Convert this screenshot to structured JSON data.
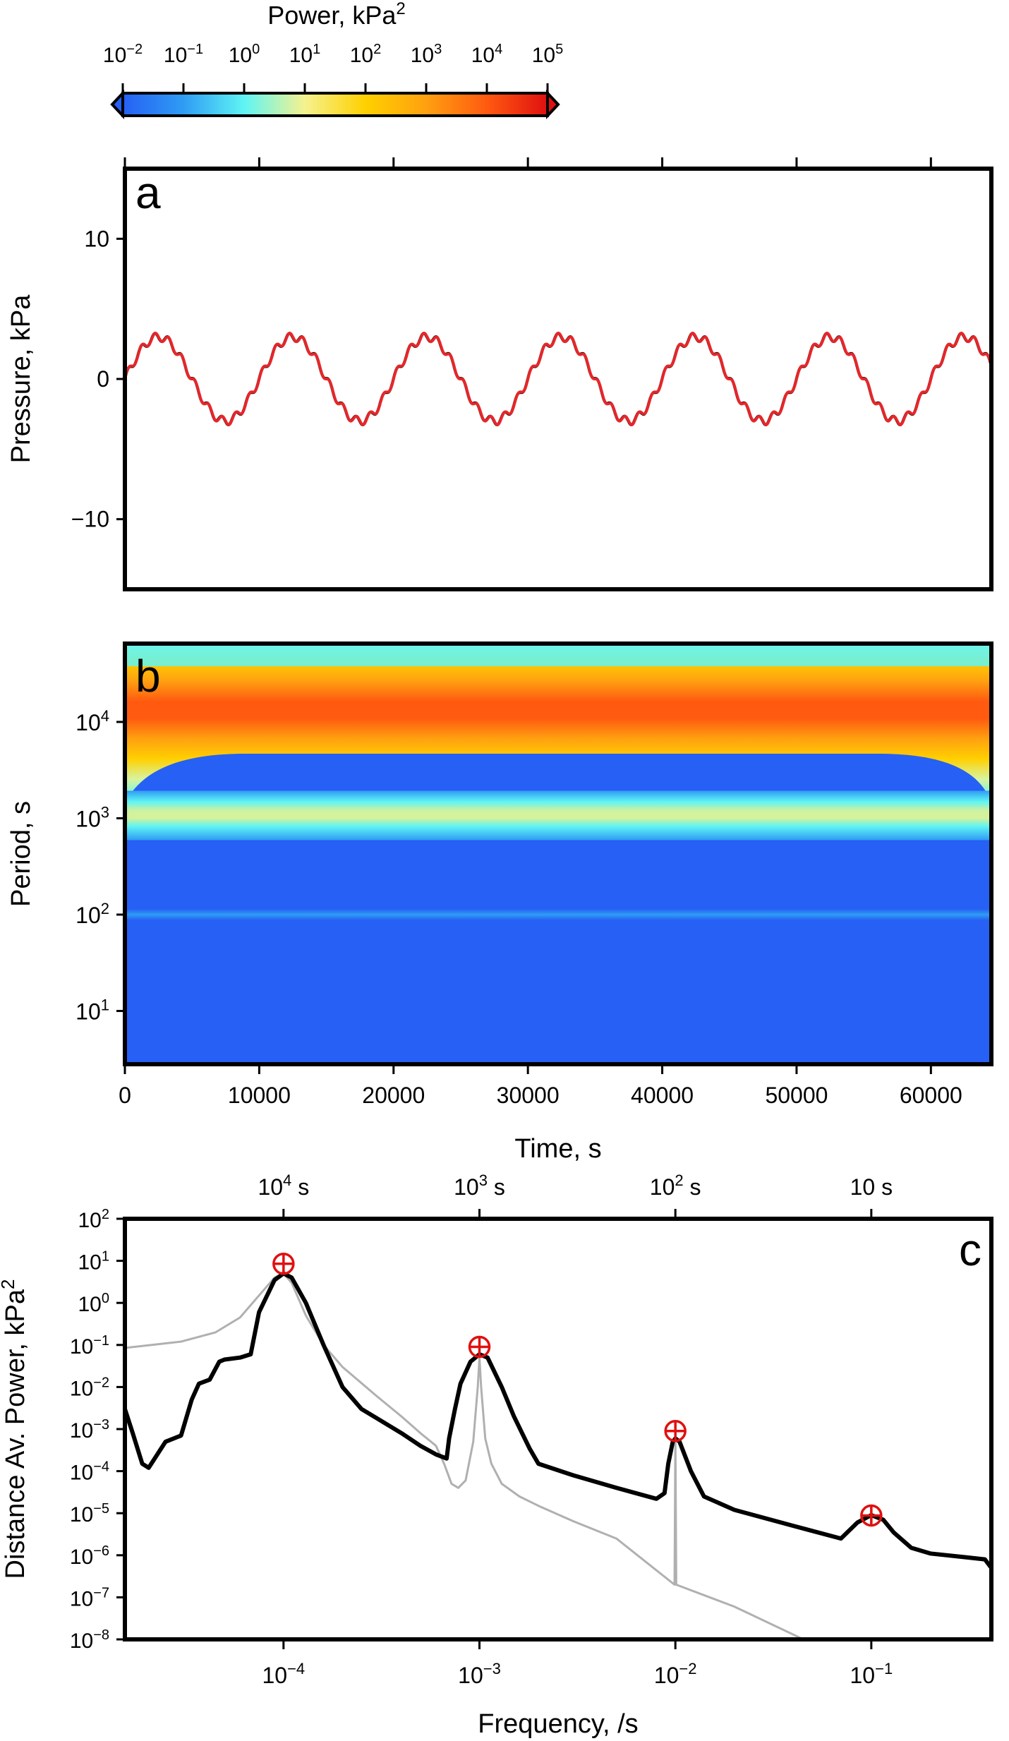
{
  "colorbar": {
    "title": "Power, kPa",
    "title_sup": "2",
    "ticks": [
      {
        "base": "10",
        "exp": "−2"
      },
      {
        "base": "10",
        "exp": "−1"
      },
      {
        "base": "10",
        "exp": "0"
      },
      {
        "base": "10",
        "exp": "1"
      },
      {
        "base": "10",
        "exp": "2"
      },
      {
        "base": "10",
        "exp": "3"
      },
      {
        "base": "10",
        "exp": "4"
      },
      {
        "base": "10",
        "exp": "5"
      }
    ],
    "log_range": [
      -2,
      5
    ],
    "colors": [
      "#2660f4",
      "#2f9cf4",
      "#5ff4f4",
      "#f6f28f",
      "#ffd000",
      "#ffa010",
      "#ff5a10",
      "#e01010"
    ]
  },
  "panels": {
    "a": {
      "label": "a"
    },
    "b": {
      "label": "b"
    },
    "c": {
      "label": "c"
    }
  },
  "chart_data": [
    {
      "type": "line",
      "panel": "a",
      "ylabel": "Pressure, kPa",
      "ylim": [
        -15,
        15
      ],
      "xlim": [
        0,
        64500
      ],
      "y_ticks": [
        -10,
        0,
        10
      ],
      "y_tick_labels": [
        "−10",
        "0",
        "10"
      ],
      "x_ticks": [
        0,
        10000,
        20000,
        30000,
        40000,
        50000,
        60000
      ],
      "signal": {
        "components": [
          {
            "amplitude_kpa": 3.0,
            "period_s": 10000
          },
          {
            "amplitude_kpa": 0.3,
            "period_s": 1000
          }
        ]
      },
      "series": [
        {
          "color": "#000000"
        },
        {
          "color": "#e8262a"
        }
      ]
    },
    {
      "type": "heatmap",
      "panel": "b",
      "xlabel": "Time, s",
      "ylabel": "Period, s",
      "xlim": [
        0,
        64500
      ],
      "ylim_period_s": [
        2.8,
        65000
      ],
      "log_y": true,
      "x_ticks": [
        0,
        10000,
        20000,
        30000,
        40000,
        50000,
        60000
      ],
      "x_tick_labels": [
        "0",
        "10000",
        "20000",
        "30000",
        "40000",
        "50000",
        "60000"
      ],
      "y_ticks": [
        {
          "base": "10",
          "exp": "1",
          "value": 10
        },
        {
          "base": "10",
          "exp": "2",
          "value": 100
        },
        {
          "base": "10",
          "exp": "3",
          "value": 1000
        },
        {
          "base": "10",
          "exp": "4",
          "value": 10000
        }
      ],
      "bands": [
        {
          "period_s": 10000,
          "max_log10_power": 4.5
        },
        {
          "period_s": 1000,
          "max_log10_power": 2.3
        },
        {
          "period_s": 100,
          "max_log10_power": -1.3
        }
      ]
    },
    {
      "type": "line",
      "panel": "c",
      "xlabel": "Frequency, /s",
      "ylabel": "Distance Av. Power, kPa",
      "ylabel_sup": "2",
      "log_x": true,
      "log_y": true,
      "xlim": [
        1.55e-05,
        0.41
      ],
      "ylim": [
        1e-08,
        100
      ],
      "x_ticks": [
        {
          "base": "10",
          "exp": "−4",
          "value": 0.0001
        },
        {
          "base": "10",
          "exp": "−3",
          "value": 0.001
        },
        {
          "base": "10",
          "exp": "−2",
          "value": 0.01
        },
        {
          "base": "10",
          "exp": "−1",
          "value": 0.1
        }
      ],
      "top_ticks": [
        {
          "base": "10",
          "exp": "4",
          "unit": " s",
          "value": 0.0001
        },
        {
          "base": "10",
          "exp": "3",
          "unit": " s",
          "value": 0.001
        },
        {
          "base": "10",
          "exp": "2",
          "unit": " s",
          "value": 0.01
        },
        {
          "base": "10",
          "exp": "",
          "unit": " s",
          "value": 0.1
        }
      ],
      "y_ticks": [
        {
          "base": "10",
          "exp": "2",
          "value": 2
        },
        {
          "base": "10",
          "exp": "1",
          "value": 1
        },
        {
          "base": "10",
          "exp": "0",
          "value": 0
        },
        {
          "base": "10",
          "exp": "−1",
          "value": -1
        },
        {
          "base": "10",
          "exp": "−2",
          "value": -2
        },
        {
          "base": "10",
          "exp": "−3",
          "value": -3
        },
        {
          "base": "10",
          "exp": "−4",
          "value": -4
        },
        {
          "base": "10",
          "exp": "−5",
          "value": -5
        },
        {
          "base": "10",
          "exp": "−6",
          "value": -6
        },
        {
          "base": "10",
          "exp": "−7",
          "value": -7
        },
        {
          "base": "10",
          "exp": "−8",
          "value": -8
        }
      ],
      "series": [
        {
          "color": "#b0b0b0",
          "points": [
            [
              1.55e-05,
              0.085
            ],
            [
              3e-05,
              0.12
            ],
            [
              4.5e-05,
              0.2
            ],
            [
              6e-05,
              0.45
            ],
            [
              7.5e-05,
              1.5
            ],
            [
              9e-05,
              4.0
            ],
            [
              0.0001,
              5.0
            ],
            [
              0.00011,
              3.0
            ],
            [
              0.00013,
              0.5
            ],
            [
              0.00016,
              0.1
            ],
            [
              0.0002,
              0.03
            ],
            [
              0.0003,
              0.006
            ],
            [
              0.0004,
              0.002
            ],
            [
              0.0005,
              0.0008
            ],
            [
              0.0006,
              0.0004
            ],
            [
              0.00066,
              0.00015
            ],
            [
              0.00072,
              5e-05
            ],
            [
              0.00078,
              4e-05
            ],
            [
              0.00085,
              6e-05
            ],
            [
              0.00093,
              0.0005
            ],
            [
              0.00098,
              0.01
            ],
            [
              0.001,
              0.05
            ],
            [
              0.00102,
              0.01
            ],
            [
              0.00107,
              0.0006
            ],
            [
              0.00115,
              0.00015
            ],
            [
              0.0013,
              5e-05
            ],
            [
              0.0016,
              2.5e-05
            ],
            [
              0.002,
              1.5e-05
            ],
            [
              0.003,
              6.5e-06
            ],
            [
              0.005,
              2.5e-06
            ],
            [
              0.0099,
              2e-07
            ],
            [
              0.01,
              0.0006
            ],
            [
              0.0101,
              2e-07
            ],
            [
              0.02,
              6e-08
            ],
            [
              0.045,
              1e-08
            ]
          ]
        },
        {
          "color": "#000000",
          "points": [
            [
              1.55e-05,
              0.003
            ],
            [
              1.7e-05,
              0.0008
            ],
            [
              1.9e-05,
              0.00015
            ],
            [
              2.05e-05,
              0.00012
            ],
            [
              2.2e-05,
              0.0002
            ],
            [
              2.5e-05,
              0.0005
            ],
            [
              3e-05,
              0.0007
            ],
            [
              3.4e-05,
              0.005
            ],
            [
              3.7e-05,
              0.012
            ],
            [
              4.2e-05,
              0.015
            ],
            [
              4.7e-05,
              0.04
            ],
            [
              5e-05,
              0.045
            ],
            [
              6e-05,
              0.05
            ],
            [
              6.8e-05,
              0.06
            ],
            [
              7.5e-05,
              0.6
            ],
            [
              9e-05,
              3.5
            ],
            [
              0.0001,
              5.0
            ],
            [
              0.00011,
              4.0
            ],
            [
              0.00013,
              1.0
            ],
            [
              0.00016,
              0.1
            ],
            [
              0.0002,
              0.01
            ],
            [
              0.00025,
              0.003
            ],
            [
              0.0003,
              0.0018
            ],
            [
              0.0004,
              0.0008
            ],
            [
              0.0005,
              0.0004
            ],
            [
              0.0006,
              0.00025
            ],
            [
              0.00068,
              0.0002
            ],
            [
              0.0007,
              0.0006
            ],
            [
              0.00075,
              0.003
            ],
            [
              0.0008,
              0.012
            ],
            [
              0.0009,
              0.04
            ],
            [
              0.001,
              0.06
            ],
            [
              0.0011,
              0.05
            ],
            [
              0.0013,
              0.01
            ],
            [
              0.0015,
              0.002
            ],
            [
              0.0018,
              0.00035
            ],
            [
              0.002,
              0.00015
            ],
            [
              0.003,
              8e-05
            ],
            [
              0.005,
              4e-05
            ],
            [
              0.008,
              2.2e-05
            ],
            [
              0.0088,
              3e-05
            ],
            [
              0.0092,
              0.00015
            ],
            [
              0.0097,
              0.0005
            ],
            [
              0.01,
              0.0006
            ],
            [
              0.0105,
              0.0005
            ],
            [
              0.012,
              0.0001
            ],
            [
              0.014,
              2.5e-05
            ],
            [
              0.02,
              1.2e-05
            ],
            [
              0.04,
              5e-06
            ],
            [
              0.07,
              2.5e-06
            ],
            [
              0.085,
              6e-06
            ],
            [
              0.1,
              9e-06
            ],
            [
              0.115,
              7e-06
            ],
            [
              0.13,
              3.5e-06
            ],
            [
              0.16,
              1.5e-06
            ],
            [
              0.2,
              1.1e-06
            ],
            [
              0.3,
              9e-07
            ],
            [
              0.38,
              8e-07
            ],
            [
              0.41,
              5e-07
            ]
          ]
        }
      ],
      "markers": [
        {
          "frequency": 0.0001,
          "power": 8.5
        },
        {
          "frequency": 0.001,
          "power": 0.09
        },
        {
          "frequency": 0.01,
          "power": 0.0009
        },
        {
          "frequency": 0.1,
          "power": 8.8e-06
        }
      ]
    }
  ]
}
